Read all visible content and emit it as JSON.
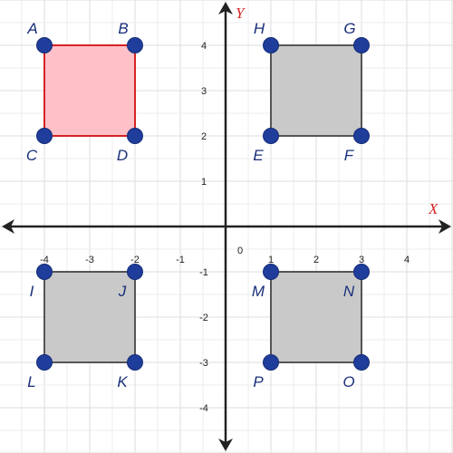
{
  "axes": {
    "x_title": "X",
    "y_title": "Y",
    "origin_label": "0",
    "x_range": [
      -5,
      5
    ],
    "y_range": [
      -5,
      5
    ],
    "x_ticks": [
      -4,
      -3,
      -2,
      -1,
      1,
      2,
      3,
      4
    ],
    "y_ticks": [
      4,
      3,
      2,
      1,
      -1,
      -2,
      -3,
      -4
    ],
    "grid": true,
    "axis_color": "#222222",
    "title_color": "#d42424",
    "grid_color": "#dddddd"
  },
  "colors": {
    "point": "#1f3d9b",
    "label": "#1a2f7a"
  },
  "points": [
    {
      "name": "A",
      "x": -4,
      "y": 4,
      "label_pos": "top-left"
    },
    {
      "name": "B",
      "x": -2,
      "y": 4,
      "label_pos": "top-left"
    },
    {
      "name": "C",
      "x": -4,
      "y": 2,
      "label_pos": "bottom-left"
    },
    {
      "name": "D",
      "x": -2,
      "y": 2,
      "label_pos": "bottom-left"
    },
    {
      "name": "H",
      "x": 1,
      "y": 4,
      "label_pos": "top-left"
    },
    {
      "name": "G",
      "x": 3,
      "y": 4,
      "label_pos": "top-left"
    },
    {
      "name": "E",
      "x": 1,
      "y": 2,
      "label_pos": "bottom-left"
    },
    {
      "name": "F",
      "x": 3,
      "y": 2,
      "label_pos": "bottom-left"
    },
    {
      "name": "I",
      "x": -4,
      "y": -1,
      "label_pos": "bottom-left"
    },
    {
      "name": "J",
      "x": -2,
      "y": -1,
      "label_pos": "bottom-left"
    },
    {
      "name": "L",
      "x": -4,
      "y": -3,
      "label_pos": "bottom-left"
    },
    {
      "name": "K",
      "x": -2,
      "y": -3,
      "label_pos": "bottom-left"
    },
    {
      "name": "M",
      "x": 1,
      "y": -1,
      "label_pos": "bottom-left"
    },
    {
      "name": "N",
      "x": 3,
      "y": -1,
      "label_pos": "bottom-left"
    },
    {
      "name": "P",
      "x": 1,
      "y": -3,
      "label_pos": "bottom-left"
    },
    {
      "name": "O",
      "x": 3,
      "y": -3,
      "label_pos": "bottom-left"
    }
  ],
  "shapes": [
    {
      "id": "square-abdc",
      "vertices": [
        "A",
        "B",
        "D",
        "C"
      ],
      "fill": "#ffc0c8",
      "stroke": "#d42424"
    },
    {
      "id": "square-hgfe",
      "vertices": [
        "H",
        "G",
        "F",
        "E"
      ],
      "fill": "#c9c9c9",
      "stroke": "#555555"
    },
    {
      "id": "square-ijkl",
      "vertices": [
        "I",
        "J",
        "K",
        "L"
      ],
      "fill": "#c9c9c9",
      "stroke": "#555555"
    },
    {
      "id": "square-mnop",
      "vertices": [
        "M",
        "N",
        "O",
        "P"
      ],
      "fill": "#c9c9c9",
      "stroke": "#555555"
    }
  ]
}
